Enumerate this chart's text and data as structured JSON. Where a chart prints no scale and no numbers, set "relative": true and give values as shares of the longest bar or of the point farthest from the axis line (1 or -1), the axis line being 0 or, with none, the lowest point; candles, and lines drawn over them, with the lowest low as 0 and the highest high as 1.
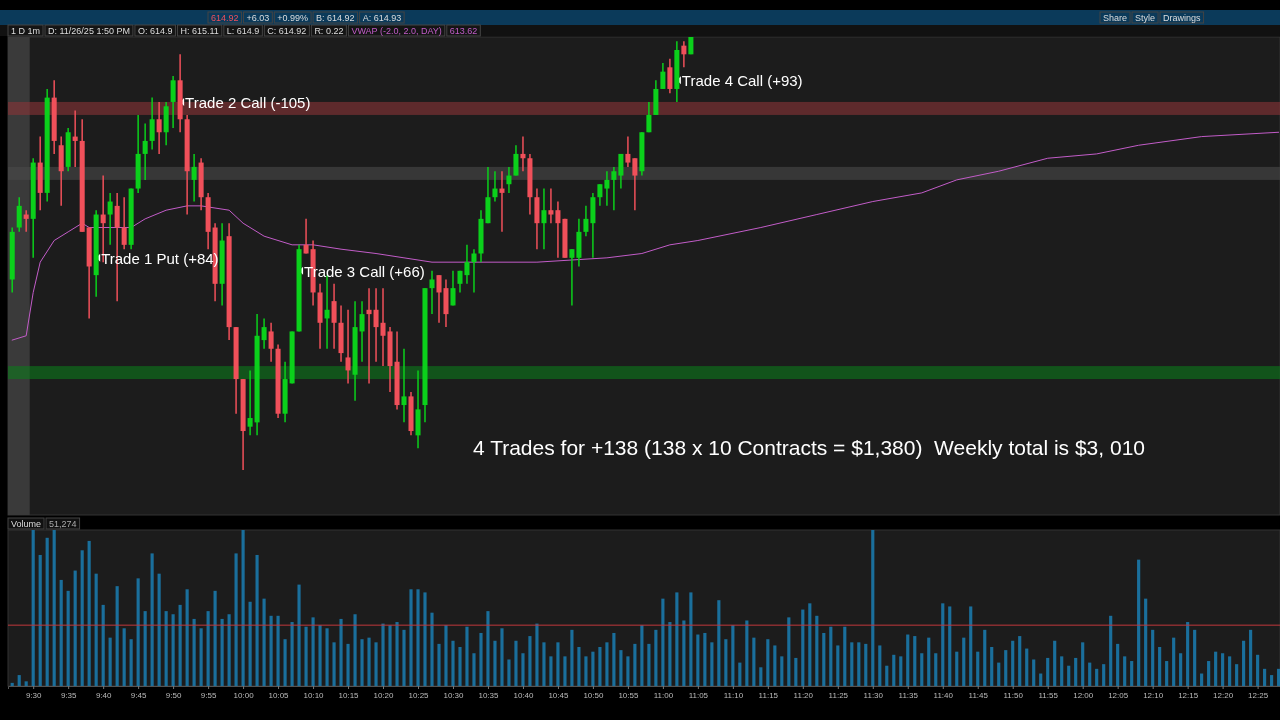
{
  "chart_data": [
    {
      "type": "candlestick",
      "relative": true,
      "xlim": [
        9.44,
        12.47
      ],
      "x": [
        9.45,
        9.4667,
        9.4833,
        9.5,
        9.5167,
        9.5333,
        9.55,
        9.5667,
        9.5833,
        9.6,
        9.6167,
        9.6333,
        9.65,
        9.6667,
        9.6833,
        9.7,
        9.7167,
        9.7333,
        9.75,
        9.7667,
        9.7833,
        9.8,
        9.8167,
        9.8333,
        9.85,
        9.8667,
        9.8833,
        9.9,
        9.9167,
        9.9333,
        9.95,
        9.9667,
        9.9833,
        10,
        10.0167,
        10.0333,
        10.05,
        10.0667,
        10.0833,
        10.1,
        10.1167,
        10.1333,
        10.15,
        10.1667,
        10.1833,
        10.2,
        10.2167,
        10.2333,
        10.25,
        10.2667,
        10.2833,
        10.3,
        10.3167,
        10.3333,
        10.35,
        10.3667,
        10.3833,
        10.4,
        10.4167,
        10.4333,
        10.45,
        10.4667,
        10.4833,
        10.5,
        10.5167,
        10.5333,
        10.55,
        10.5667,
        10.5833,
        10.6,
        10.6167,
        10.6333,
        10.65,
        10.6667,
        10.6833,
        10.7,
        10.7167,
        10.7333,
        10.75,
        10.7667,
        10.7833,
        10.8,
        10.8167,
        10.8333,
        10.85,
        10.8667,
        10.8833,
        10.9,
        10.9167,
        10.9333,
        10.95,
        10.9667,
        10.9833,
        11,
        11.0167,
        11.0333,
        11.05,
        11.0667
      ],
      "ohlc": [
        [
          0.44,
          0.56,
          0.41,
          0.55
        ],
        [
          0.56,
          0.63,
          0.55,
          0.61
        ],
        [
          0.59,
          0.6,
          0.55,
          0.58
        ],
        [
          0.58,
          0.72,
          0.49,
          0.71
        ],
        [
          0.71,
          0.77,
          0.6,
          0.64
        ],
        [
          0.64,
          0.88,
          0.62,
          0.86
        ],
        [
          0.86,
          0.9,
          0.73,
          0.76
        ],
        [
          0.75,
          0.77,
          0.61,
          0.69
        ],
        [
          0.7,
          0.79,
          0.69,
          0.78
        ],
        [
          0.77,
          0.83,
          0.7,
          0.76
        ],
        [
          0.76,
          0.81,
          0.55,
          0.55
        ],
        [
          0.56,
          0.56,
          0.35,
          0.47
        ],
        [
          0.45,
          0.6,
          0.4,
          0.59
        ],
        [
          0.59,
          0.68,
          0.48,
          0.57
        ],
        [
          0.59,
          0.64,
          0.52,
          0.62
        ],
        [
          0.61,
          0.64,
          0.39,
          0.56
        ],
        [
          0.56,
          0.63,
          0.51,
          0.52
        ],
        [
          0.52,
          0.65,
          0.51,
          0.65
        ],
        [
          0.65,
          0.82,
          0.64,
          0.73
        ],
        [
          0.73,
          0.8,
          0.67,
          0.76
        ],
        [
          0.76,
          0.86,
          0.74,
          0.81
        ],
        [
          0.81,
          0.85,
          0.73,
          0.78
        ],
        [
          0.78,
          0.85,
          0.75,
          0.84
        ],
        [
          0.85,
          0.91,
          0.79,
          0.9
        ],
        [
          0.9,
          0.96,
          0.78,
          0.81
        ],
        [
          0.81,
          0.82,
          0.59,
          0.69
        ],
        [
          0.67,
          0.73,
          0.62,
          0.7
        ],
        [
          0.71,
          0.72,
          0.6,
          0.63
        ],
        [
          0.63,
          0.64,
          0.51,
          0.55
        ],
        [
          0.56,
          0.57,
          0.39,
          0.43
        ],
        [
          0.43,
          0.57,
          0.38,
          0.53
        ],
        [
          0.54,
          0.57,
          0.3,
          0.33
        ],
        [
          0.33,
          0.33,
          0.13,
          0.21
        ],
        [
          0.21,
          0.21,
          0,
          0.09
        ],
        [
          0.1,
          0.23,
          0.08,
          0.12
        ],
        [
          0.11,
          0.36,
          0.08,
          0.31
        ],
        [
          0.3,
          0.35,
          0.28,
          0.33
        ],
        [
          0.32,
          0.34,
          0.25,
          0.28
        ],
        [
          0.28,
          0.29,
          0.12,
          0.13
        ],
        [
          0.13,
          0.25,
          0.11,
          0.21
        ],
        [
          0.2,
          0.32,
          0.2,
          0.32
        ],
        [
          0.32,
          0.52,
          0.32,
          0.51
        ],
        [
          0.52,
          0.58,
          0.5,
          0.5
        ],
        [
          0.51,
          0.53,
          0.38,
          0.41
        ],
        [
          0.41,
          0.43,
          0.28,
          0.34
        ],
        [
          0.35,
          0.45,
          0.28,
          0.37
        ],
        [
          0.39,
          0.43,
          0.28,
          0.34
        ],
        [
          0.34,
          0.38,
          0.25,
          0.27
        ],
        [
          0.26,
          0.37,
          0.2,
          0.23
        ],
        [
          0.22,
          0.39,
          0.16,
          0.33
        ],
        [
          0.32,
          0.39,
          0.25,
          0.36
        ],
        [
          0.37,
          0.42,
          0.2,
          0.36
        ],
        [
          0.37,
          0.42,
          0.25,
          0.33
        ],
        [
          0.34,
          0.42,
          0.24,
          0.31
        ],
        [
          0.32,
          0.33,
          0.18,
          0.24
        ],
        [
          0.25,
          0.32,
          0.14,
          0.15
        ],
        [
          0.15,
          0.28,
          0.11,
          0.17
        ],
        [
          0.17,
          0.18,
          0.08,
          0.09
        ],
        [
          0.08,
          0.23,
          0.05,
          0.14
        ],
        [
          0.15,
          0.42,
          0.11,
          0.42
        ],
        [
          0.42,
          0.46,
          0.36,
          0.44
        ],
        [
          0.45,
          0.45,
          0.34,
          0.41
        ],
        [
          0.42,
          0.44,
          0.33,
          0.36
        ],
        [
          0.38,
          0.46,
          0.38,
          0.42
        ],
        [
          0.43,
          0.46,
          0.41,
          0.46
        ],
        [
          0.45,
          0.52,
          0.43,
          0.48
        ],
        [
          0.48,
          0.51,
          0.41,
          0.5
        ],
        [
          0.5,
          0.6,
          0.48,
          0.58
        ],
        [
          0.57,
          0.7,
          0.57,
          0.63
        ],
        [
          0.63,
          0.69,
          0.62,
          0.65
        ],
        [
          0.65,
          0.69,
          0.55,
          0.64
        ],
        [
          0.66,
          0.7,
          0.64,
          0.68
        ],
        [
          0.68,
          0.75,
          0.68,
          0.73
        ],
        [
          0.73,
          0.77,
          0.69,
          0.72
        ],
        [
          0.72,
          0.73,
          0.59,
          0.63
        ],
        [
          0.63,
          0.65,
          0.51,
          0.57
        ],
        [
          0.57,
          0.65,
          0.51,
          0.6
        ],
        [
          0.6,
          0.65,
          0.57,
          0.59
        ],
        [
          0.6,
          0.62,
          0.49,
          0.57
        ],
        [
          0.58,
          0.58,
          0.49,
          0.49
        ],
        [
          0.49,
          0.51,
          0.38,
          0.51
        ],
        [
          0.49,
          0.58,
          0.47,
          0.55
        ],
        [
          0.55,
          0.61,
          0.54,
          0.58
        ],
        [
          0.57,
          0.64,
          0.49,
          0.63
        ],
        [
          0.63,
          0.66,
          0.61,
          0.66
        ],
        [
          0.65,
          0.69,
          0.61,
          0.67
        ],
        [
          0.67,
          0.7,
          0.6,
          0.69
        ],
        [
          0.68,
          0.73,
          0.65,
          0.73
        ],
        [
          0.73,
          0.77,
          0.7,
          0.71
        ],
        [
          0.72,
          0.72,
          0.6,
          0.68
        ],
        [
          0.69,
          0.78,
          0.68,
          0.78
        ],
        [
          0.78,
          0.85,
          0.78,
          0.82
        ],
        [
          0.82,
          0.9,
          0.82,
          0.88
        ],
        [
          0.88,
          0.94,
          0.88,
          0.92
        ],
        [
          0.93,
          0.95,
          0.87,
          0.88
        ],
        [
          0.88,
          0.99,
          0.85,
          0.97
        ],
        [
          0.98,
          0.99,
          0.93,
          0.96
        ],
        [
          0.96,
          1,
          0.96,
          1
        ]
      ],
      "colors": [
        "#0bd01b",
        "#0bd01b",
        "#f0505a",
        "#0bd01b",
        "#f0505a",
        "#0bd01b",
        "#f0505a",
        "#f0505a",
        "#0bd01b",
        "#f0505a",
        "#f0505a",
        "#f0505a",
        "#0bd01b",
        "#f0505a",
        "#0bd01b",
        "#f0505a",
        "#f0505a",
        "#0bd01b",
        "#0bd01b",
        "#0bd01b",
        "#0bd01b",
        "#f0505a",
        "#0bd01b",
        "#0bd01b",
        "#f0505a",
        "#f0505a",
        "#0bd01b",
        "#f0505a",
        "#f0505a",
        "#f0505a",
        "#0bd01b",
        "#f0505a",
        "#f0505a",
        "#f0505a",
        "#0bd01b",
        "#0bd01b",
        "#0bd01b",
        "#f0505a",
        "#f0505a",
        "#0bd01b",
        "#0bd01b",
        "#0bd01b",
        "#f0505a",
        "#f0505a",
        "#f0505a",
        "#0bd01b",
        "#f0505a",
        "#f0505a",
        "#f0505a",
        "#0bd01b",
        "#0bd01b",
        "#f0505a",
        "#f0505a",
        "#f0505a",
        "#f0505a",
        "#f0505a",
        "#0bd01b",
        "#f0505a",
        "#0bd01b",
        "#0bd01b",
        "#0bd01b",
        "#f0505a",
        "#f0505a",
        "#0bd01b",
        "#0bd01b",
        "#0bd01b",
        "#0bd01b",
        "#0bd01b",
        "#0bd01b",
        "#0bd01b",
        "#f0505a",
        "#0bd01b",
        "#0bd01b",
        "#f0505a",
        "#f0505a",
        "#f0505a",
        "#0bd01b",
        "#f0505a",
        "#f0505a",
        "#f0505a",
        "#0bd01b",
        "#0bd01b",
        "#0bd01b",
        "#0bd01b",
        "#0bd01b",
        "#0bd01b",
        "#0bd01b",
        "#0bd01b",
        "#f0505a",
        "#f0505a",
        "#0bd01b",
        "#0bd01b",
        "#0bd01b",
        "#0bd01b",
        "#f0505a",
        "#0bd01b",
        "#f0505a",
        "#0bd01b"
      ],
      "series": [
        {
          "type": "line",
          "name": "VWAP (-2.0, 2.0, DAY)",
          "color": "#c25cc8",
          "x": [
            9.45,
            9.4833,
            9.5,
            9.5167,
            9.55,
            9.5833,
            9.6167,
            9.6333,
            9.7333,
            9.7667,
            9.8167,
            9.8667,
            9.9,
            9.9667,
            10,
            10.05,
            10.1167,
            10.1667,
            10.2333,
            10.3167,
            10.3833,
            10.45,
            10.55,
            10.7,
            10.8667,
            10.95,
            11.0167,
            11.0833,
            11.2333,
            11.3667,
            11.5,
            11.6167,
            11.7,
            11.8,
            11.9167,
            12.0333,
            12.1333,
            12.2833,
            12.4667
          ],
          "values": [
            0.3,
            0.31,
            0.41,
            0.48,
            0.53,
            0.55,
            0.57,
            0.56,
            0.56,
            0.58,
            0.6,
            0.61,
            0.61,
            0.6,
            0.57,
            0.54,
            0.52,
            0.52,
            0.51,
            0.5,
            0.49,
            0.48,
            0.48,
            0.48,
            0.49,
            0.5,
            0.52,
            0.53,
            0.56,
            0.59,
            0.62,
            0.64,
            0.67,
            0.69,
            0.72,
            0.73,
            0.75,
            0.77,
            0.78
          ]
        }
      ],
      "bands": [
        {
          "axis": "x",
          "from": 9.44,
          "to": 9.4917,
          "color": "#3a3a3a"
        },
        {
          "axis": "y",
          "from": 0.82,
          "to": 0.85,
          "color": "#8a3437"
        },
        {
          "axis": "y",
          "from": 0.67,
          "to": 0.7,
          "color": "#4a4a4a"
        },
        {
          "axis": "y",
          "from": 0.21,
          "to": 0.24,
          "color": "#0c7a1a"
        }
      ],
      "annotations": [
        "1 D 1m",
        "D: 11/26/25 1:50 PM",
        "O: 614.9",
        "H: 615.11",
        "L: 614.9",
        "C: 614.92",
        "R: 0.22",
        "613.62",
        "614.92",
        "+6.03",
        "+0.99%",
        "B: 614.92",
        "A: 614.93",
        "Share",
        "Style",
        "Drawings",
        "4 Trades for +138 (138 x 10 Contracts = $1,380)  Weekly total is $3, 010",
        {
          "text": "Trade 1 Put (+84)",
          "x": 9.65,
          "y": 0.49
        },
        {
          "text": "Trade 2 Call (-105)",
          "x": 9.85,
          "y": 0.85
        },
        {
          "text": "Trade 3 Call (+66)",
          "x": 10.1333,
          "y": 0.46
        },
        {
          "text": "Trade 4 Call (+93)",
          "x": 11.0333,
          "y": 0.9
        }
      ]
    },
    {
      "type": "bar",
      "title": "Volume",
      "annotations": [
        "51,274"
      ],
      "relative": true,
      "color": "#1a6f9c",
      "xlim": [
        9.44,
        12.47
      ],
      "x": [
        9.45,
        9.4667,
        9.4833,
        9.5,
        9.5167,
        9.5333,
        9.55,
        9.5667,
        9.5833,
        9.6,
        9.6167,
        9.6333,
        9.65,
        9.6667,
        9.6833,
        9.7,
        9.7167,
        9.7333,
        9.75,
        9.7667,
        9.7833,
        9.8,
        9.8167,
        9.8333,
        9.85,
        9.8667,
        9.8833,
        9.9,
        9.9167,
        9.9333,
        9.95,
        9.9667,
        9.9833,
        10,
        10.0167,
        10.0333,
        10.05,
        10.0667,
        10.0833,
        10.1,
        10.1167,
        10.1333,
        10.15,
        10.1667,
        10.1833,
        10.2,
        10.2167,
        10.2333,
        10.25,
        10.2667,
        10.2833,
        10.3,
        10.3167,
        10.3333,
        10.35,
        10.3667,
        10.3833,
        10.4,
        10.4167,
        10.4333,
        10.45,
        10.4667,
        10.4833,
        10.5,
        10.5167,
        10.5333,
        10.55,
        10.5667,
        10.5833,
        10.6,
        10.6167,
        10.6333,
        10.65,
        10.6667,
        10.6833,
        10.7,
        10.7167,
        10.7333,
        10.75,
        10.7667,
        10.7833,
        10.8,
        10.8167,
        10.8333,
        10.85,
        10.8667,
        10.8833,
        10.9,
        10.9167,
        10.9333,
        10.95,
        10.9667,
        10.9833,
        11,
        11.0167,
        11.0333,
        11.05,
        11.0667,
        11.0833,
        11.1,
        11.1167,
        11.1333,
        11.15,
        11.1667,
        11.1833,
        11.2,
        11.2167,
        11.2333,
        11.25,
        11.2667,
        11.2833,
        11.3,
        11.3167,
        11.3333,
        11.35,
        11.3667,
        11.3833,
        11.4,
        11.4167,
        11.4333,
        11.45,
        11.4667,
        11.4833,
        11.5,
        11.5167,
        11.5333,
        11.55,
        11.5667,
        11.5833,
        11.6,
        11.6167,
        11.6333,
        11.65,
        11.6667,
        11.6833,
        11.7,
        11.7167,
        11.7333,
        11.75,
        11.7667,
        11.7833,
        11.8,
        11.8167,
        11.8333,
        11.85,
        11.8667,
        11.8833,
        11.9,
        11.9167,
        11.9333,
        11.95,
        11.9667,
        11.9833,
        12,
        12.0167,
        12.0333,
        12.05,
        12.0667,
        12.0833,
        12.1,
        12.1167,
        12.1333,
        12.15,
        12.1667,
        12.1833,
        12.2,
        12.2167,
        12.2333,
        12.25,
        12.2667,
        12.2833,
        12.3,
        12.3167,
        12.3333,
        12.35,
        12.3667,
        12.3833,
        12.4,
        12.4167,
        12.4333,
        12.45,
        12.4667
      ],
      "values": [
        0.02,
        0.07,
        0.03,
        1,
        0.84,
        0.95,
        1,
        0.68,
        0.61,
        0.74,
        0.87,
        0.93,
        0.72,
        0.52,
        0.31,
        0.64,
        0.37,
        0.3,
        0.69,
        0.48,
        0.85,
        0.72,
        0.48,
        0.46,
        0.52,
        0.62,
        0.43,
        0.37,
        0.48,
        0.61,
        0.43,
        0.46,
        0.85,
        1,
        0.54,
        0.84,
        0.56,
        0.45,
        0.45,
        0.3,
        0.41,
        0.65,
        0.38,
        0.44,
        0.39,
        0.37,
        0.28,
        0.43,
        0.27,
        0.46,
        0.3,
        0.31,
        0.28,
        0.4,
        0.39,
        0.41,
        0.36,
        0.62,
        0.62,
        0.6,
        0.47,
        0.27,
        0.39,
        0.29,
        0.25,
        0.38,
        0.21,
        0.34,
        0.48,
        0.29,
        0.37,
        0.17,
        0.29,
        0.21,
        0.32,
        0.4,
        0.28,
        0.19,
        0.28,
        0.19,
        0.36,
        0.25,
        0.19,
        0.22,
        0.25,
        0.28,
        0.34,
        0.23,
        0.19,
        0.27,
        0.39,
        0.27,
        0.36,
        0.56,
        0.41,
        0.6,
        0.42,
        0.6,
        0.33,
        0.34,
        0.28,
        0.55,
        0.3,
        0.39,
        0.15,
        0.42,
        0.31,
        0.12,
        0.3,
        0.26,
        0.19,
        0.44,
        0.18,
        0.49,
        0.53,
        0.45,
        0.34,
        0.38,
        0.26,
        0.38,
        0.28,
        0.28,
        0.27,
        1,
        0.26,
        0.13,
        0.2,
        0.19,
        0.33,
        0.32,
        0.21,
        0.31,
        0.21,
        0.53,
        0.51,
        0.22,
        0.31,
        0.51,
        0.22,
        0.36,
        0.25,
        0.15,
        0.23,
        0.29,
        0.32,
        0.24,
        0.17,
        0.08,
        0.18,
        0.29,
        0.19,
        0.13,
        0.18,
        0.28,
        0.15,
        0.11,
        0.14,
        0.45,
        0.27,
        0.19,
        0.16,
        0.81,
        0.56,
        0.36,
        0.25,
        0.16,
        0.31,
        0.21,
        0.41,
        0.36,
        0.08,
        0.16,
        0.22,
        0.21,
        0.19,
        0.14,
        0.29,
        0.36,
        0.2,
        0.11,
        0.07,
        0.11
      ],
      "ref_lines": [
        {
          "axis": "y",
          "value": 0.39,
          "color": "#c0383c"
        }
      ],
      "xticks": [
        {
          "value": 9.5,
          "label": "9:30"
        },
        {
          "value": 9.5833,
          "label": "9:35"
        },
        {
          "value": 9.6667,
          "label": "9:40"
        },
        {
          "value": 9.75,
          "label": "9:45"
        },
        {
          "value": 9.8333,
          "label": "9:50"
        },
        {
          "value": 9.9167,
          "label": "9:55"
        },
        {
          "value": 10,
          "label": "10:00"
        },
        {
          "value": 10.0833,
          "label": "10:05"
        },
        {
          "value": 10.1667,
          "label": "10:10"
        },
        {
          "value": 10.25,
          "label": "10:15"
        },
        {
          "value": 10.3333,
          "label": "10:20"
        },
        {
          "value": 10.4167,
          "label": "10:25"
        },
        {
          "value": 10.5,
          "label": "10:30"
        },
        {
          "value": 10.5833,
          "label": "10:35"
        },
        {
          "value": 10.6667,
          "label": "10:40"
        },
        {
          "value": 10.75,
          "label": "10:45"
        },
        {
          "value": 10.8333,
          "label": "10:50"
        },
        {
          "value": 10.9167,
          "label": "10:55"
        },
        {
          "value": 11,
          "label": "11:00"
        },
        {
          "value": 11.0833,
          "label": "11:05"
        },
        {
          "value": 11.1667,
          "label": "11:10"
        },
        {
          "value": 11.25,
          "label": "11:15"
        },
        {
          "value": 11.3333,
          "label": "11:20"
        },
        {
          "value": 11.4167,
          "label": "11:25"
        },
        {
          "value": 11.5,
          "label": "11:30"
        },
        {
          "value": 11.5833,
          "label": "11:35"
        },
        {
          "value": 11.6667,
          "label": "11:40"
        },
        {
          "value": 11.75,
          "label": "11:45"
        },
        {
          "value": 11.8333,
          "label": "11:50"
        },
        {
          "value": 11.9167,
          "label": "11:55"
        },
        {
          "value": 12,
          "label": "12:00"
        },
        {
          "value": 12.0833,
          "label": "12:05"
        },
        {
          "value": 12.1667,
          "label": "12:10"
        },
        {
          "value": 12.25,
          "label": "12:15"
        },
        {
          "value": 12.3333,
          "label": "12:20"
        },
        {
          "value": 12.4167,
          "label": "12:25"
        }
      ]
    }
  ]
}
